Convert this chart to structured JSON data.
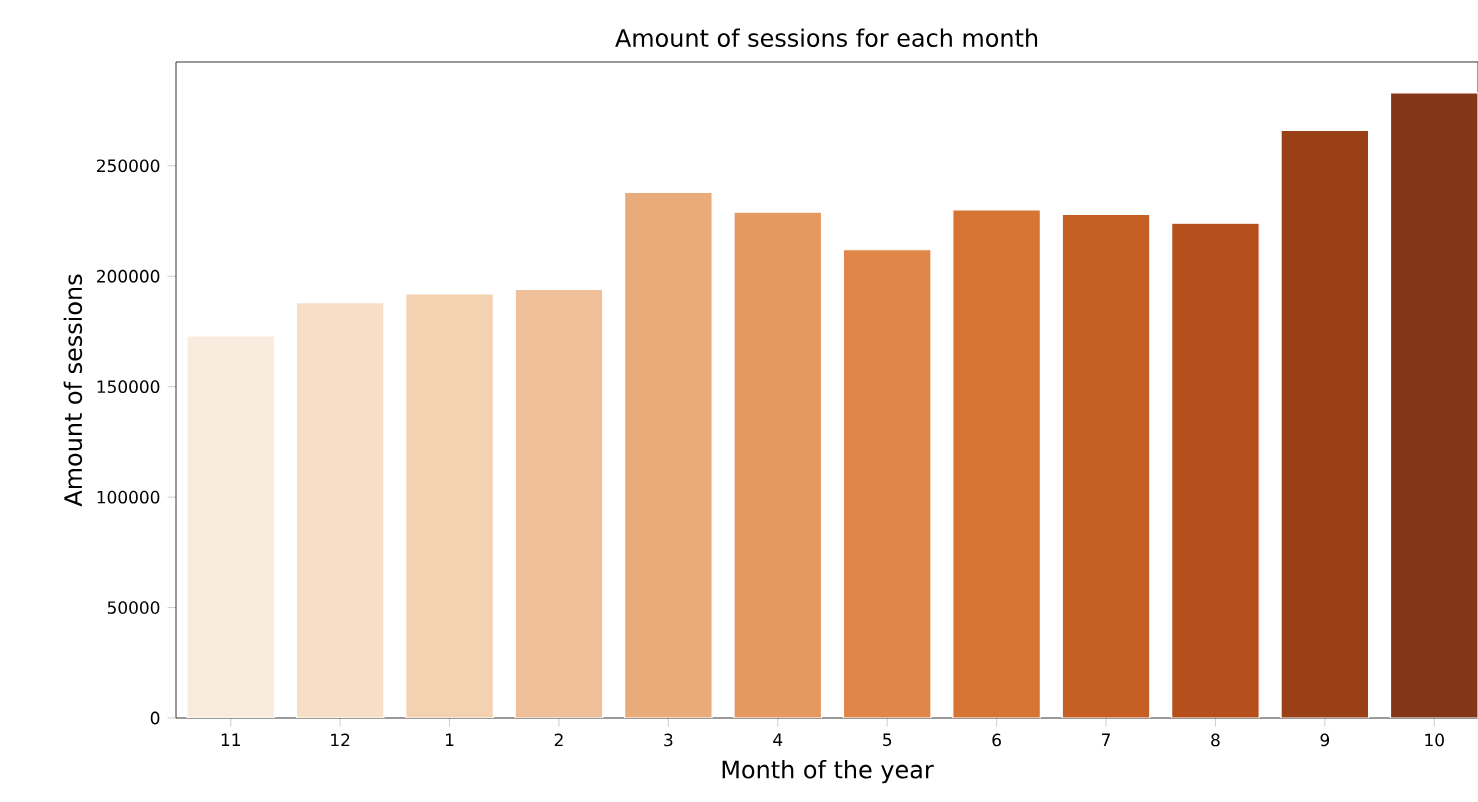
{
  "chart_data": {
    "type": "bar",
    "title": "Amount of sessions for each month",
    "xlabel": "Month of the year",
    "ylabel": "Amount of sessions",
    "categories": [
      "11",
      "12",
      "1",
      "2",
      "3",
      "4",
      "5",
      "6",
      "7",
      "8",
      "9",
      "10"
    ],
    "values": [
      173000,
      188000,
      192000,
      194000,
      238000,
      229000,
      212000,
      230000,
      228000,
      224000,
      266000,
      283000
    ],
    "colors": [
      "#f9ebdd",
      "#f8dec6",
      "#f4d1b1",
      "#eebf98",
      "#eaab7a",
      "#e59961",
      "#e08649",
      "#d67433",
      "#c65f24",
      "#b54f1c",
      "#994017",
      "#843718"
    ],
    "ylim": [
      0,
      297000
    ],
    "yticks": [
      0,
      50000,
      100000,
      150000,
      200000,
      250000
    ]
  }
}
